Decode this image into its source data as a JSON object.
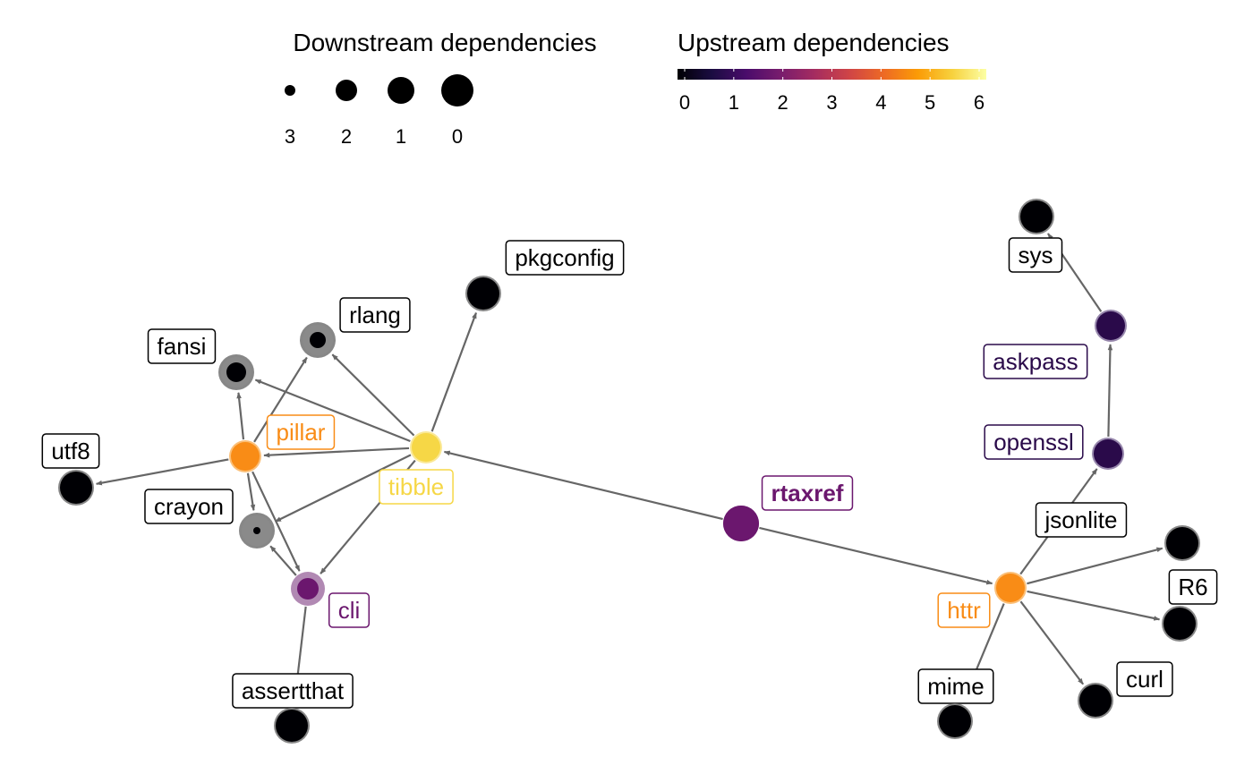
{
  "legend": {
    "downstream": {
      "title": "Downstream dependencies",
      "items": [
        {
          "label": "3",
          "value": 3
        },
        {
          "label": "2",
          "value": 2
        },
        {
          "label": "1",
          "value": 1
        },
        {
          "label": "0",
          "value": 0
        }
      ]
    },
    "upstream": {
      "title": "Upstream dependencies",
      "ticks": [
        "0",
        "1",
        "2",
        "3",
        "4",
        "5",
        "6"
      ],
      "range": [
        0,
        6
      ],
      "colors": [
        "#000004",
        "#1b0c41",
        "#4a0c6b",
        "#781c6d",
        "#a52c60",
        "#cf4446",
        "#ed6925",
        "#fb9b06",
        "#f7d13d",
        "#fcffa4"
      ]
    }
  },
  "nodes": [
    {
      "id": "pkgconfig",
      "label": "pkgconfig",
      "color": "#000004",
      "text_color": "#000000",
      "border_color": "#000000",
      "outline": "#7a7a7a",
      "bold": false
    },
    {
      "id": "rlang",
      "label": "rlang",
      "color": "#000004",
      "text_color": "#000000",
      "border_color": "#000000",
      "outline": "#7a7a7a",
      "bold": false
    },
    {
      "id": "fansi",
      "label": "fansi",
      "color": "#000004",
      "text_color": "#000000",
      "border_color": "#000000",
      "outline": "#7a7a7a",
      "bold": false
    },
    {
      "id": "pillar",
      "label": "pillar",
      "color": "#f98c16",
      "text_color": "#f98c16",
      "border_color": "#f98c16",
      "outline": "#fbb868",
      "bold": false
    },
    {
      "id": "tibble",
      "label": "tibble",
      "color": "#f6d746",
      "text_color": "#f6d746",
      "border_color": "#f6d746",
      "outline": "#f9e58a",
      "bold": false
    },
    {
      "id": "utf8",
      "label": "utf8",
      "color": "#000004",
      "text_color": "#000000",
      "border_color": "#000000",
      "outline": "#7a7a7a",
      "bold": false
    },
    {
      "id": "crayon",
      "label": "crayon",
      "color": "#000004",
      "text_color": "#000000",
      "border_color": "#000000",
      "outline": "#7a7a7a",
      "bold": false
    },
    {
      "id": "cli",
      "label": "cli",
      "color": "#6b176e",
      "text_color": "#6b176e",
      "border_color": "#6b176e",
      "outline": "#a87cab",
      "bold": false
    },
    {
      "id": "assertthat",
      "label": "assertthat",
      "color": "#000004",
      "text_color": "#000000",
      "border_color": "#000000",
      "outline": "#7a7a7a",
      "bold": false
    },
    {
      "id": "rtaxref",
      "label": "rtaxref",
      "color": "#6b176e",
      "text_color": "#6b176e",
      "border_color": "#6b176e",
      "outline": "#6b176e",
      "bold": true
    },
    {
      "id": "sys",
      "label": "sys",
      "color": "#000004",
      "text_color": "#000000",
      "border_color": "#000000",
      "outline": "#7a7a7a",
      "bold": false
    },
    {
      "id": "askpass",
      "label": "askpass",
      "color": "#2a0a4a",
      "text_color": "#2a0a4a",
      "border_color": "#2a0a4a",
      "outline": "#8c7aa3",
      "bold": false
    },
    {
      "id": "openssl",
      "label": "openssl",
      "color": "#2a0a4a",
      "text_color": "#2a0a4a",
      "border_color": "#2a0a4a",
      "outline": "#8c7aa3",
      "bold": false
    },
    {
      "id": "jsonlite",
      "label": "jsonlite",
      "color": "#000004",
      "text_color": "#000000",
      "border_color": "#000000",
      "outline": "#7a7a7a",
      "bold": false
    },
    {
      "id": "httr",
      "label": "httr",
      "color": "#f98c16",
      "text_color": "#f98c16",
      "border_color": "#f98c16",
      "outline": "#fbb868",
      "bold": false
    },
    {
      "id": "R6",
      "label": "R6",
      "color": "#000004",
      "text_color": "#000000",
      "border_color": "#000000",
      "outline": "#7a7a7a",
      "bold": false
    },
    {
      "id": "mime",
      "label": "mime",
      "color": "#000004",
      "text_color": "#000000",
      "border_color": "#000000",
      "outline": "#7a7a7a",
      "bold": false
    },
    {
      "id": "curl",
      "label": "curl",
      "color": "#000004",
      "text_color": "#000000",
      "border_color": "#000000",
      "outline": "#7a7a7a",
      "bold": false
    }
  ],
  "edges": [
    {
      "from": "tibble",
      "to": "pkgconfig"
    },
    {
      "from": "tibble",
      "to": "rlang"
    },
    {
      "from": "tibble",
      "to": "fansi"
    },
    {
      "from": "tibble",
      "to": "pillar"
    },
    {
      "from": "tibble",
      "to": "crayon"
    },
    {
      "from": "tibble",
      "to": "cli"
    },
    {
      "from": "pillar",
      "to": "rlang"
    },
    {
      "from": "pillar",
      "to": "fansi"
    },
    {
      "from": "pillar",
      "to": "utf8"
    },
    {
      "from": "pillar",
      "to": "crayon"
    },
    {
      "from": "pillar",
      "to": "cli"
    },
    {
      "from": "cli",
      "to": "crayon"
    },
    {
      "from": "cli",
      "to": "assertthat"
    },
    {
      "from": "rtaxref",
      "to": "tibble"
    },
    {
      "from": "rtaxref",
      "to": "httr"
    },
    {
      "from": "askpass",
      "to": "sys"
    },
    {
      "from": "openssl",
      "to": "askpass"
    },
    {
      "from": "httr",
      "to": "openssl"
    },
    {
      "from": "httr",
      "to": "jsonlite"
    },
    {
      "from": "httr",
      "to": "R6"
    },
    {
      "from": "httr",
      "to": "mime"
    },
    {
      "from": "httr",
      "to": "curl"
    }
  ]
}
